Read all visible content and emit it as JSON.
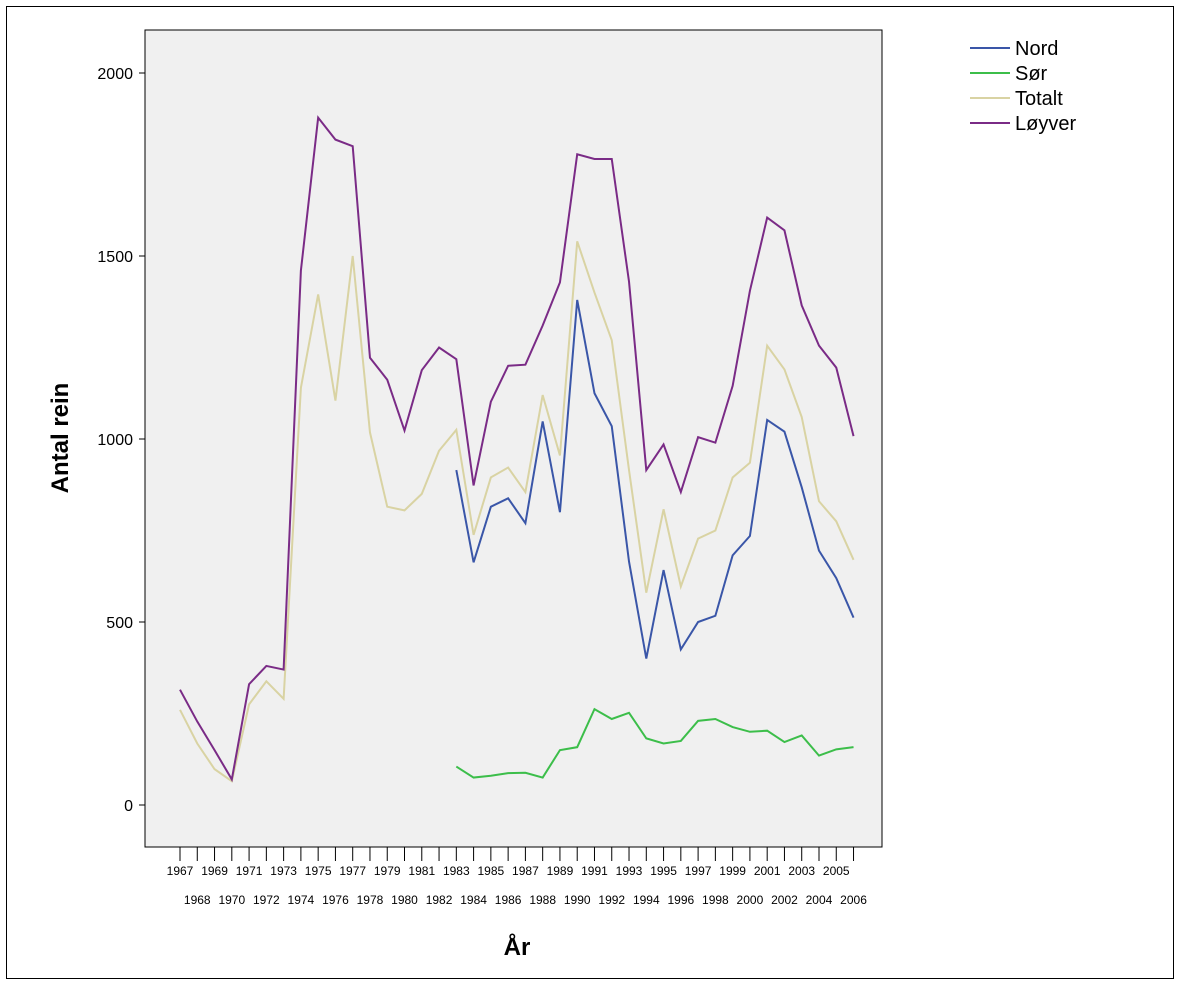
{
  "chart_data": {
    "type": "line",
    "xlabel": "År",
    "ylabel": "Antal rein",
    "ylim": [
      -110,
      2130
    ],
    "yticks": [
      0,
      500,
      1000,
      1500,
      2000
    ],
    "grid": false,
    "legend_position": "top-right",
    "x": [
      "1967",
      "1968",
      "1969",
      "1970",
      "1971",
      "1972",
      "1973",
      "1974",
      "1975",
      "1976",
      "1977",
      "1978",
      "1979",
      "1980",
      "1981",
      "1982",
      "1983",
      "1984",
      "1985",
      "1986",
      "1987",
      "1988",
      "1989",
      "1990",
      "1991",
      "1992",
      "1993",
      "1994",
      "1995",
      "1996",
      "1997",
      "1998",
      "1999",
      "2000",
      "2001",
      "2002",
      "2003",
      "2004",
      "2005",
      "2006"
    ],
    "series": [
      {
        "name": "Nord",
        "color": "#3a56a8",
        "values": [
          null,
          null,
          null,
          null,
          null,
          null,
          null,
          null,
          null,
          null,
          null,
          null,
          null,
          null,
          null,
          null,
          915,
          663,
          815,
          838,
          770,
          1048,
          800,
          1380,
          1125,
          1035,
          665,
          400,
          642,
          425,
          500,
          517,
          682,
          735,
          1052,
          1020,
          868,
          695,
          620,
          512
        ]
      },
      {
        "name": "Sør",
        "color": "#3cbe4a",
        "values": [
          null,
          null,
          null,
          null,
          null,
          null,
          null,
          null,
          null,
          null,
          null,
          null,
          null,
          null,
          null,
          null,
          105,
          75,
          80,
          87,
          88,
          75,
          150,
          158,
          262,
          235,
          252,
          182,
          168,
          175,
          230,
          235,
          213,
          200,
          203,
          172,
          190,
          135,
          152,
          158
        ]
      },
      {
        "name": "Totalt",
        "color": "#d9d3a3",
        "values": [
          260,
          168,
          98,
          65,
          275,
          338,
          290,
          1140,
          1395,
          1105,
          1500,
          1018,
          815,
          805,
          850,
          968,
          1025,
          738,
          895,
          922,
          855,
          1120,
          955,
          1540,
          1400,
          1270,
          915,
          580,
          808,
          597,
          728,
          750,
          895,
          935,
          1255,
          1190,
          1060,
          830,
          775,
          670
        ]
      },
      {
        "name": "Løyver",
        "color": "#7a2b86",
        "values": [
          315,
          228,
          150,
          70,
          330,
          380,
          370,
          1460,
          1878,
          1818,
          1800,
          1222,
          1162,
          1023,
          1188,
          1250,
          1218,
          873,
          1102,
          1200,
          1203,
          1310,
          1428,
          1778,
          1765,
          1765,
          1430,
          915,
          985,
          855,
          1005,
          990,
          1145,
          1405,
          1605,
          1570,
          1365,
          1255,
          1195,
          1008
        ]
      }
    ]
  }
}
